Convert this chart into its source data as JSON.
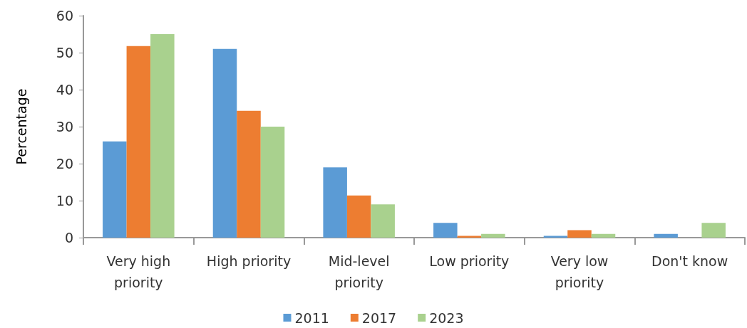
{
  "chart_data": {
    "type": "bar",
    "ylabel": "Percentage",
    "categories": [
      "Very high\npriority",
      "High priority",
      "Mid-level\npriority",
      "Low priority",
      "Very low\npriority",
      "Don't know"
    ],
    "series": [
      {
        "name": "2011",
        "color": "#5b9bd5",
        "values": [
          26,
          51,
          19,
          4,
          0.5,
          1
        ]
      },
      {
        "name": "2017",
        "color": "#ed7d31",
        "values": [
          51.8,
          34.3,
          11.4,
          0.5,
          2,
          0
        ]
      },
      {
        "name": "2023",
        "color": "#a9d18e",
        "values": [
          55,
          30,
          9,
          1,
          1,
          4
        ]
      }
    ],
    "ylim": [
      0,
      60
    ],
    "yticks": [
      0,
      10,
      20,
      30,
      40,
      50,
      60
    ],
    "grid": false,
    "legend": "bottom"
  }
}
